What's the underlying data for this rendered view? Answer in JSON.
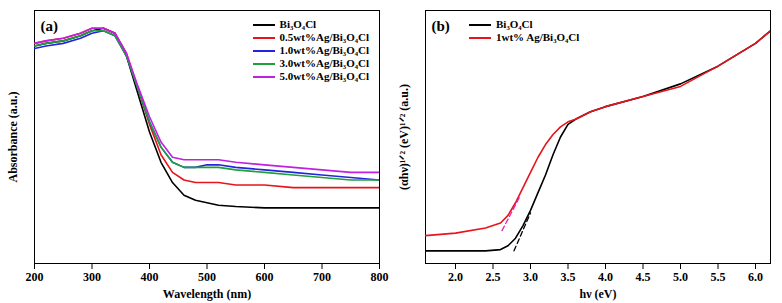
{
  "chart_data": [
    {
      "type": "line",
      "title": "(a)",
      "x_label": "Wavelength (nm)",
      "y_label": "Absorbance (a.u.)",
      "xlim": [
        200,
        800
      ],
      "xticks": [
        200,
        300,
        400,
        500,
        600,
        700,
        800
      ],
      "ylim": [
        0,
        1
      ],
      "yticks": [],
      "tick_labels": "x",
      "legend": "top-right",
      "x": [
        200,
        220,
        250,
        280,
        300,
        320,
        340,
        360,
        380,
        400,
        420,
        440,
        460,
        480,
        500,
        520,
        550,
        600,
        650,
        700,
        750,
        800
      ],
      "series": [
        {
          "name": "Bi₃O₄Cl",
          "color": "#000000",
          "values": [
            0.86,
            0.87,
            0.88,
            0.9,
            0.92,
            0.93,
            0.91,
            0.82,
            0.67,
            0.52,
            0.4,
            0.32,
            0.27,
            0.25,
            0.24,
            0.23,
            0.225,
            0.22,
            0.22,
            0.22,
            0.22,
            0.22
          ]
        },
        {
          "name": "0.5wt%Ag/Bi₃O₄Cl",
          "color": "#e8141c",
          "values": [
            0.87,
            0.88,
            0.89,
            0.91,
            0.93,
            0.93,
            0.91,
            0.83,
            0.69,
            0.55,
            0.43,
            0.36,
            0.33,
            0.32,
            0.32,
            0.32,
            0.31,
            0.31,
            0.3,
            0.3,
            0.3,
            0.3
          ]
        },
        {
          "name": "1.0wt%Ag/Bi₃O₄Cl",
          "color": "#2424e0",
          "values": [
            0.85,
            0.86,
            0.87,
            0.89,
            0.91,
            0.92,
            0.9,
            0.82,
            0.69,
            0.56,
            0.46,
            0.4,
            0.38,
            0.38,
            0.39,
            0.39,
            0.38,
            0.37,
            0.36,
            0.35,
            0.34,
            0.33
          ]
        },
        {
          "name": "3.0wt%Ag/Bi₃O₄Cl",
          "color": "#1fa03a",
          "values": [
            0.86,
            0.87,
            0.88,
            0.9,
            0.92,
            0.92,
            0.9,
            0.82,
            0.69,
            0.56,
            0.46,
            0.4,
            0.38,
            0.38,
            0.38,
            0.38,
            0.37,
            0.36,
            0.35,
            0.34,
            0.33,
            0.33
          ]
        },
        {
          "name": "5.0wt%Ag/Bi₃O₄Cl",
          "color": "#c020e0",
          "values": [
            0.87,
            0.88,
            0.89,
            0.91,
            0.93,
            0.93,
            0.91,
            0.83,
            0.7,
            0.58,
            0.48,
            0.42,
            0.41,
            0.41,
            0.41,
            0.41,
            0.4,
            0.39,
            0.38,
            0.37,
            0.36,
            0.36
          ]
        }
      ]
    },
    {
      "type": "line",
      "title": "(b)",
      "x_label": "hν (eV)",
      "y_label": "(αhν)¹ᐟ² (eV)¹ᐟ² (a.u.)",
      "xlim": [
        1.6,
        6.2
      ],
      "xticks": [
        {
          "value": 2,
          "label": "2.0"
        },
        2.5,
        {
          "value": 3,
          "label": "3.0"
        },
        3.5,
        {
          "value": 4,
          "label": "4.0"
        },
        4.5,
        {
          "value": 5,
          "label": "5.0"
        },
        5.5,
        {
          "value": 6,
          "label": "6.0"
        }
      ],
      "ylim": [
        0,
        1
      ],
      "yticks": [],
      "tick_labels": "x",
      "legend": "top-left",
      "x": [
        1.6,
        2.0,
        2.4,
        2.6,
        2.7,
        2.8,
        2.9,
        3.0,
        3.1,
        3.2,
        3.3,
        3.4,
        3.5,
        3.6,
        3.8,
        4.0,
        4.5,
        5.0,
        5.5,
        6.0,
        6.2
      ],
      "series": [
        {
          "name": "Bi₃O₄Cl",
          "color": "#000000",
          "values": [
            0.05,
            0.05,
            0.05,
            0.055,
            0.07,
            0.1,
            0.15,
            0.21,
            0.28,
            0.35,
            0.43,
            0.5,
            0.55,
            0.57,
            0.6,
            0.62,
            0.66,
            0.71,
            0.78,
            0.87,
            0.92
          ]
        },
        {
          "name": "1wt% Ag/Bi₃O₄Cl",
          "color": "#e8141c",
          "values": [
            0.11,
            0.12,
            0.14,
            0.16,
            0.19,
            0.24,
            0.3,
            0.36,
            0.42,
            0.47,
            0.51,
            0.54,
            0.56,
            0.57,
            0.6,
            0.62,
            0.66,
            0.7,
            0.78,
            0.87,
            0.92
          ]
        }
      ],
      "tangents": [
        {
          "color": "#000000",
          "line_style": "dashed",
          "x": [
            2.78,
            3.0
          ],
          "y": [
            0.05,
            0.2
          ]
        },
        {
          "color": "#e020c0",
          "line_style": "dashed",
          "x": [
            2.62,
            2.85
          ],
          "y": [
            0.13,
            0.26
          ]
        }
      ]
    }
  ]
}
